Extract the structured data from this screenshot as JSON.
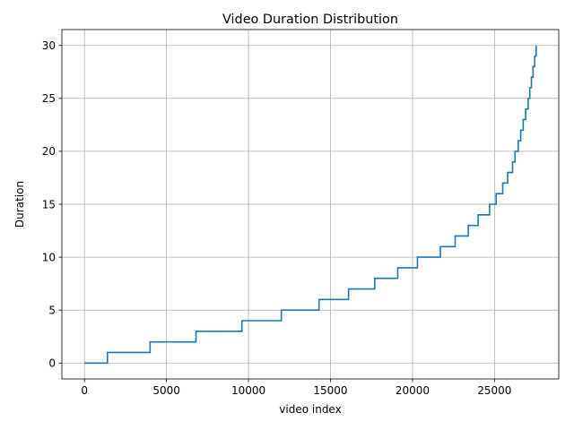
{
  "chart_data": {
    "type": "line",
    "title": "Video Duration Distribution",
    "xlabel": "video index",
    "ylabel": "Duration",
    "xlim": [
      -1377,
      28917
    ],
    "ylim": [
      -1.5,
      31.5
    ],
    "xticks": [
      0,
      5000,
      10000,
      15000,
      20000,
      25000
    ],
    "yticks": [
      0,
      5,
      10,
      15,
      20,
      25,
      30
    ],
    "grid": true,
    "legend": "none",
    "series": [
      {
        "color": "#1f77b4",
        "step_points": [
          [
            0,
            0
          ],
          [
            1400,
            1
          ],
          [
            4000,
            2
          ],
          [
            6800,
            3
          ],
          [
            9600,
            4
          ],
          [
            12000,
            5
          ],
          [
            14300,
            6
          ],
          [
            16100,
            7
          ],
          [
            17700,
            8
          ],
          [
            19100,
            9
          ],
          [
            20300,
            10
          ],
          [
            21700,
            11
          ],
          [
            22600,
            12
          ],
          [
            23400,
            13
          ],
          [
            24000,
            14
          ],
          [
            24700,
            15
          ],
          [
            25100,
            16
          ],
          [
            25500,
            17
          ],
          [
            25800,
            18
          ],
          [
            26100,
            19
          ],
          [
            26250,
            20
          ],
          [
            26450,
            21
          ],
          [
            26600,
            22
          ],
          [
            26750,
            23
          ],
          [
            26900,
            24
          ],
          [
            27050,
            25
          ],
          [
            27150,
            26
          ],
          [
            27250,
            27
          ],
          [
            27350,
            28
          ],
          [
            27450,
            29
          ],
          [
            27540,
            30
          ]
        ],
        "x_end": 27540
      }
    ]
  }
}
